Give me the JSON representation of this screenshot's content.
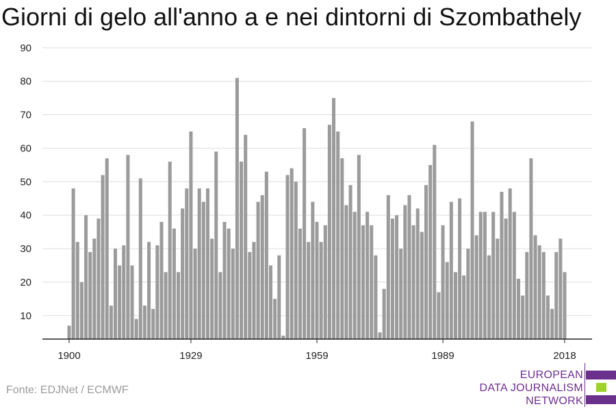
{
  "title": "Giorni di gelo all'anno a e nei dintorni di Szombathely",
  "source": "Fonte: EDJNet / ECMWF",
  "logo": {
    "line1": "EUROPEAN",
    "line2": "DATA JOURNALISM",
    "line3": "NETWORK",
    "colors": {
      "purple": "#6b2f8c",
      "green": "#9ed12b"
    }
  },
  "chart_data": {
    "type": "bar",
    "title": "Giorni di gelo all'anno a e nei dintorni di Szombathely",
    "xlabel": "",
    "ylabel": "",
    "ylim": [
      3,
      92
    ],
    "yticks": [
      10,
      20,
      30,
      40,
      50,
      60,
      70,
      80,
      90
    ],
    "xticks": [
      1900,
      1929,
      1959,
      1989,
      2018
    ],
    "grid": true,
    "bar_color": "#9b9b9b",
    "x": [
      1900,
      1901,
      1902,
      1903,
      1904,
      1905,
      1906,
      1907,
      1908,
      1909,
      1910,
      1911,
      1912,
      1913,
      1914,
      1915,
      1916,
      1917,
      1918,
      1919,
      1920,
      1921,
      1922,
      1923,
      1924,
      1925,
      1926,
      1927,
      1928,
      1929,
      1930,
      1931,
      1932,
      1933,
      1934,
      1935,
      1936,
      1937,
      1938,
      1939,
      1940,
      1941,
      1942,
      1943,
      1944,
      1945,
      1946,
      1947,
      1948,
      1949,
      1950,
      1951,
      1952,
      1953,
      1954,
      1955,
      1956,
      1957,
      1958,
      1959,
      1960,
      1961,
      1962,
      1963,
      1964,
      1965,
      1966,
      1967,
      1968,
      1969,
      1970,
      1971,
      1972,
      1973,
      1974,
      1975,
      1976,
      1977,
      1978,
      1979,
      1980,
      1981,
      1982,
      1983,
      1984,
      1985,
      1986,
      1987,
      1988,
      1989,
      1990,
      1991,
      1992,
      1993,
      1994,
      1995,
      1996,
      1997,
      1998,
      1999,
      2000,
      2001,
      2002,
      2003,
      2004,
      2005,
      2006,
      2007,
      2008,
      2009,
      2010,
      2011,
      2012,
      2013,
      2014,
      2015,
      2016,
      2017,
      2018
    ],
    "values": [
      7,
      48,
      32,
      20,
      40,
      29,
      33,
      39,
      52,
      57,
      13,
      30,
      25,
      31,
      58,
      25,
      9,
      51,
      13,
      32,
      12,
      31,
      38,
      23,
      56,
      36,
      23,
      42,
      48,
      65,
      30,
      48,
      44,
      48,
      33,
      59,
      23,
      38,
      36,
      30,
      81,
      56,
      64,
      29,
      32,
      44,
      46,
      53,
      25,
      15,
      28,
      4,
      52,
      54,
      50,
      36,
      66,
      32,
      44,
      38,
      32,
      37,
      67,
      75,
      65,
      57,
      43,
      49,
      41,
      58,
      37,
      41,
      37,
      28,
      5,
      18,
      46,
      39,
      40,
      30,
      43,
      46,
      37,
      42,
      35,
      49,
      55,
      61,
      17,
      37,
      26,
      44,
      23,
      45,
      22,
      30,
      68,
      34,
      41,
      41,
      28,
      41,
      33,
      47,
      39,
      48,
      41,
      21,
      16,
      29,
      57,
      34,
      31,
      29,
      16,
      12,
      29,
      33,
      23
    ]
  }
}
